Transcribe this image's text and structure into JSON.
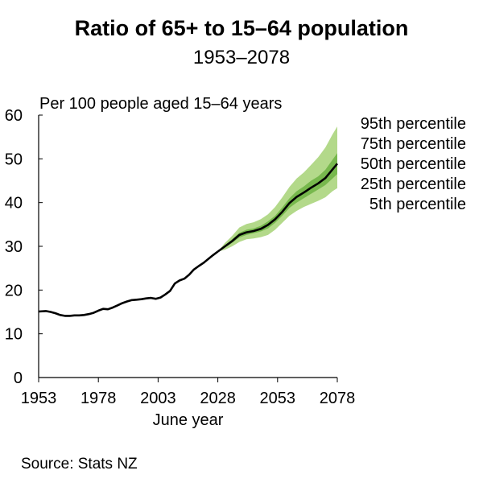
{
  "chart_data": {
    "type": "line",
    "title": "Ratio of 65+ to 15–64 population",
    "subtitle": "1953–2078",
    "ylabel": "Per 100 people aged 15–64 years",
    "xlabel": "June year",
    "source": "Source: Stats NZ",
    "xlim": [
      1953,
      2078
    ],
    "ylim": [
      0,
      60
    ],
    "x_ticks": [
      "1953",
      "1978",
      "2003",
      "2028",
      "2053",
      "2078"
    ],
    "y_ticks": [
      "0",
      "10",
      "20",
      "30",
      "40",
      "50",
      "60"
    ],
    "grid": false,
    "legend_position": "right",
    "legend": [
      "95th percentile",
      "75th percentile",
      "50th percentile",
      "25th percentile",
      "5th percentile"
    ],
    "colors": {
      "outer_band": "#b3d98a",
      "inner_band": "#77b84d",
      "median": "#000000"
    },
    "history": {
      "x": [
        1953,
        1956,
        1958,
        1960,
        1962,
        1964,
        1966,
        1968,
        1970,
        1972,
        1974,
        1976,
        1978,
        1980,
        1982,
        1984,
        1986,
        1988,
        1990,
        1992,
        1994,
        1996,
        1998,
        2000,
        2002,
        2004,
        2006,
        2008,
        2010,
        2012,
        2014,
        2016,
        2018,
        2020,
        2022,
        2024,
        2026,
        2028
      ],
      "y": [
        15.1,
        15.2,
        15.0,
        14.7,
        14.3,
        14.1,
        14.1,
        14.2,
        14.2,
        14.3,
        14.5,
        14.8,
        15.3,
        15.7,
        15.6,
        16.0,
        16.5,
        17.0,
        17.4,
        17.7,
        17.8,
        17.9,
        18.1,
        18.2,
        18.0,
        18.3,
        19.0,
        19.8,
        21.5,
        22.2,
        22.6,
        23.5,
        24.7,
        25.5,
        26.2,
        27.1,
        28.0,
        28.8
      ]
    },
    "projection": {
      "x": [
        2028,
        2031,
        2034,
        2037,
        2040,
        2043,
        2046,
        2049,
        2052,
        2055,
        2058,
        2061,
        2064,
        2067,
        2070,
        2073,
        2076,
        2078
      ],
      "p50": [
        28.8,
        30.0,
        31.2,
        32.6,
        33.2,
        33.5,
        34.0,
        34.9,
        36.2,
        37.9,
        39.9,
        41.3,
        42.3,
        43.4,
        44.4,
        45.6,
        47.6,
        48.9
      ],
      "p25": [
        28.8,
        29.7,
        30.8,
        32.0,
        32.6,
        33.0,
        33.4,
        34.1,
        35.4,
        37.0,
        38.8,
        40.0,
        41.0,
        42.0,
        43.0,
        44.0,
        45.5,
        46.5
      ],
      "p75": [
        28.8,
        30.3,
        31.6,
        33.1,
        33.8,
        34.1,
        34.7,
        35.7,
        37.0,
        38.9,
        41.0,
        42.6,
        43.7,
        45.0,
        46.0,
        47.5,
        49.8,
        51.3
      ],
      "p5": [
        28.8,
        29.2,
        30.0,
        31.0,
        31.6,
        31.8,
        32.1,
        32.6,
        33.8,
        35.4,
        37.0,
        38.1,
        39.0,
        39.7,
        40.4,
        41.2,
        42.6,
        43.3
      ],
      "p95": [
        28.8,
        30.8,
        32.4,
        34.3,
        35.1,
        35.5,
        36.2,
        37.3,
        39.0,
        41.2,
        43.6,
        45.5,
        46.9,
        48.6,
        50.4,
        52.6,
        55.6,
        57.4
      ]
    }
  }
}
